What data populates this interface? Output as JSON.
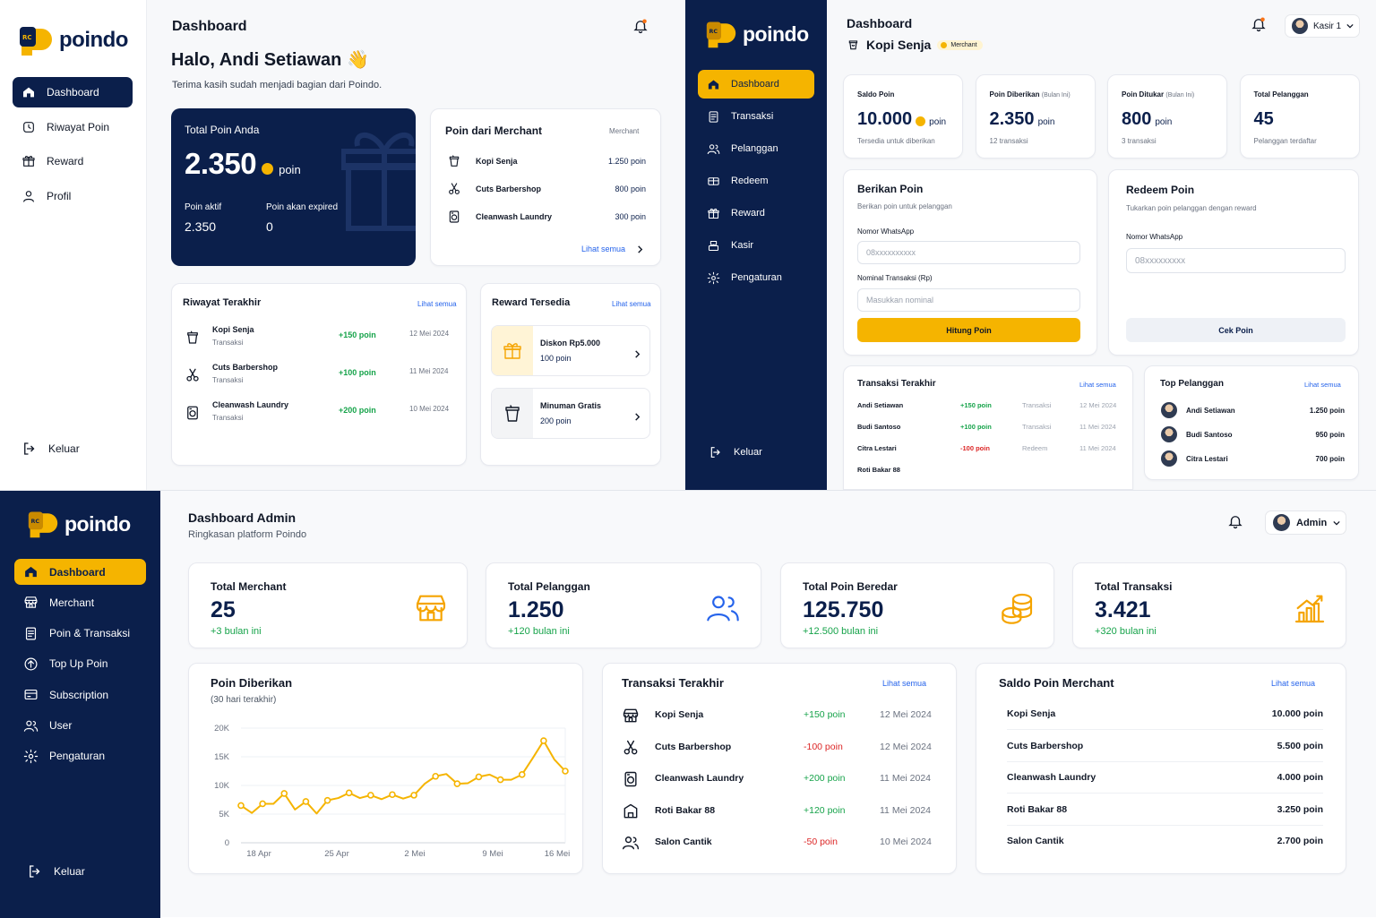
{
  "brand": {
    "name": "poindo",
    "mark": "RC",
    "colors": {
      "navy": "#0b1f4b",
      "orange": "#f5b400",
      "green": "#16a34a",
      "red": "#dc2626",
      "blue": "#2563eb"
    }
  },
  "customer": {
    "nav": [
      {
        "label": "Dashboard",
        "icon": "home-icon",
        "active": true
      },
      {
        "label": "Riwayat Poin",
        "icon": "history-icon"
      },
      {
        "label": "Reward",
        "icon": "gift-icon"
      },
      {
        "label": "Profil",
        "icon": "user-icon"
      }
    ],
    "logout": "Keluar",
    "page_title": "Dashboard",
    "greeting": "Halo, Andi Setiawan 👋",
    "subtitle": "Terima kasih sudah menjadi bagian dari Poindo.",
    "total": {
      "label": "Total Poin Anda",
      "value": "2.350",
      "unit": "poin",
      "active_label": "Poin aktif",
      "active_value": "2.350",
      "expire_label": "Poin akan expired",
      "expire_value": "0"
    },
    "merchant_card": {
      "title": "Poin dari Merchant",
      "tag": "Merchant",
      "items": [
        {
          "name": "Kopi Senja",
          "points": "1.250 poin",
          "icon": "cup-icon"
        },
        {
          "name": "Cuts Barbershop",
          "points": "800 poin",
          "icon": "scissors-icon"
        },
        {
          "name": "Cleanwash Laundry",
          "points": "300 poin",
          "icon": "washer-icon"
        }
      ],
      "link": "Lihat semua"
    },
    "history": {
      "title": "Riwayat Terakhir",
      "link": "Lihat semua",
      "items": [
        {
          "name": "Kopi Senja",
          "type": "Transaksi",
          "points": "+150 poin",
          "date": "12 Mei 2024",
          "icon": "cup-icon"
        },
        {
          "name": "Cuts Barbershop",
          "type": "Transaksi",
          "points": "+100 poin",
          "date": "11 Mei 2024",
          "icon": "scissors-icon"
        },
        {
          "name": "Cleanwash Laundry",
          "type": "Transaksi",
          "points": "+200 poin",
          "date": "10 Mei 2024",
          "icon": "washer-icon"
        }
      ]
    },
    "rewards": {
      "title": "Reward Tersedia",
      "link": "Lihat semua",
      "items": [
        {
          "name": "Diskon Rp5.000",
          "cost": "100 poin",
          "icon": "gift-icon"
        },
        {
          "name": "Minuman Gratis",
          "cost": "200 poin",
          "icon": "cup-icon"
        }
      ]
    }
  },
  "merchant": {
    "nav": [
      {
        "label": "Dashboard",
        "icon": "home-icon",
        "active": true
      },
      {
        "label": "Transaksi",
        "icon": "receipt-icon"
      },
      {
        "label": "Pelanggan",
        "icon": "users-icon"
      },
      {
        "label": "Redeem",
        "icon": "ticket-icon"
      },
      {
        "label": "Reward",
        "icon": "gift-icon"
      },
      {
        "label": "Kasir",
        "icon": "register-icon"
      },
      {
        "label": "Pengaturan",
        "icon": "gear-icon"
      }
    ],
    "logout": "Keluar",
    "page_title": "Dashboard",
    "store_name": "Kopi Senja",
    "store_badge": "Merchant",
    "user": "Kasir 1",
    "stats": [
      {
        "label": "Saldo Poin",
        "suffix": "",
        "value": "10.000",
        "unit": "poin",
        "sub": "Tersedia untuk diberikan",
        "coin": true
      },
      {
        "label": "Poin Diberikan",
        "suffix": "(Bulan Ini)",
        "value": "2.350",
        "unit": "poin",
        "sub": "12 transaksi"
      },
      {
        "label": "Poin Ditukar",
        "suffix": "(Bulan Ini)",
        "value": "800",
        "unit": "poin",
        "sub": "3 transaksi"
      },
      {
        "label": "Total Pelanggan",
        "suffix": "",
        "value": "45",
        "unit": "",
        "sub": "Pelanggan terdaftar"
      }
    ],
    "give": {
      "title": "Berikan Poin",
      "desc": "Berikan poin untuk pelanggan",
      "wa_label": "Nomor WhatsApp",
      "wa_placeholder": "08xxxxxxxxxx",
      "amount_label": "Nominal Transaksi (Rp)",
      "amount_placeholder": "Masukkan nominal",
      "button": "Hitung Poin"
    },
    "redeem": {
      "title": "Redeem Poin",
      "desc": "Tukarkan poin pelanggan dengan reward",
      "wa_label": "Nomor WhatsApp",
      "wa_placeholder": "08xxxxxxxxx",
      "button": "Cek Poin"
    },
    "recent": {
      "title": "Transaksi Terakhir",
      "link": "Lihat semua",
      "rows": [
        {
          "name": "Andi Setiawan",
          "points": "+150 poin",
          "type": "Transaksi",
          "date": "12 Mei 2024",
          "positive": true
        },
        {
          "name": "Budi Santoso",
          "points": "+100 poin",
          "type": "Transaksi",
          "date": "11 Mei 2024",
          "positive": true
        },
        {
          "name": "Citra Lestari",
          "points": "-100 poin",
          "type": "Redeem",
          "date": "11 Mei 2024",
          "positive": false
        },
        {
          "name": "Roti Bakar 88",
          "points": "",
          "type": "",
          "date": "",
          "positive": true
        }
      ]
    },
    "top": {
      "title": "Top Pelanggan",
      "link": "Lihat semua",
      "rows": [
        {
          "name": "Andi Setiawan",
          "points": "1.250 poin"
        },
        {
          "name": "Budi Santoso",
          "points": "950 poin"
        },
        {
          "name": "Citra Lestari",
          "points": "700 poin"
        }
      ]
    }
  },
  "admin": {
    "nav": [
      {
        "label": "Dashboard",
        "icon": "home-icon",
        "active": true
      },
      {
        "label": "Merchant",
        "icon": "store-icon"
      },
      {
        "label": "Poin & Transaksi",
        "icon": "receipt-icon"
      },
      {
        "label": "Top Up Poin",
        "icon": "topup-icon"
      },
      {
        "label": "Subscription",
        "icon": "card-icon"
      },
      {
        "label": "User",
        "icon": "users-icon"
      },
      {
        "label": "Pengaturan",
        "icon": "gear-icon"
      }
    ],
    "logout": "Keluar",
    "title": "Dashboard Admin",
    "subtitle": "Ringkasan platform Poindo",
    "user": "Admin",
    "stats": [
      {
        "label": "Total Merchant",
        "value": "25",
        "delta": "+3 bulan ini",
        "icon": "store-icon"
      },
      {
        "label": "Total Pelanggan",
        "value": "1.250",
        "delta": "+120 bulan ini",
        "icon": "users-icon"
      },
      {
        "label": "Total Poin Beredar",
        "value": "125.750",
        "delta": "+12.500 bulan ini",
        "icon": "coins-icon"
      },
      {
        "label": "Total Transaksi",
        "value": "3.421",
        "delta": "+320 bulan ini",
        "icon": "bar-chart-icon"
      }
    ],
    "recent": {
      "title": "Transaksi Terakhir",
      "link": "Lihat semua",
      "rows": [
        {
          "name": "Kopi Senja",
          "points": "+150 poin",
          "date": "12 Mei 2024",
          "positive": true,
          "icon": "store-icon"
        },
        {
          "name": "Cuts Barbershop",
          "points": "-100 poin",
          "date": "12 Mei 2024",
          "positive": false,
          "icon": "scissors-icon"
        },
        {
          "name": "Cleanwash Laundry",
          "points": "+200 poin",
          "date": "11 Mei 2024",
          "positive": true,
          "icon": "washer-icon"
        },
        {
          "name": "Roti Bakar 88",
          "points": "+120 poin",
          "date": "11 Mei 2024",
          "positive": true,
          "icon": "shop-icon"
        },
        {
          "name": "Salon Cantik",
          "points": "-50 poin",
          "date": "10 Mei 2024",
          "positive": false,
          "icon": "users-icon"
        }
      ]
    },
    "balances": {
      "title": "Saldo Poin Merchant",
      "link": "Lihat semua",
      "rows": [
        {
          "name": "Kopi Senja",
          "points": "10.000 poin"
        },
        {
          "name": "Cuts Barbershop",
          "points": "5.500 poin"
        },
        {
          "name": "Cleanwash Laundry",
          "points": "4.000 poin"
        },
        {
          "name": "Roti Bakar 88",
          "points": "3.250 poin"
        },
        {
          "name": "Salon Cantik",
          "points": "2.700 poin"
        }
      ]
    }
  },
  "chart_data": {
    "type": "line",
    "title": "Poin Diberikan",
    "subtitle": "(30 hari terakhir)",
    "xlabel": "",
    "ylabel": "",
    "ylim": [
      0,
      20000
    ],
    "yticks": [
      "20K",
      "15K",
      "10K",
      "5K",
      "0"
    ],
    "xticks": [
      "18 Apr",
      "25 Apr",
      "2 Mei",
      "9 Mei",
      "16 Mei"
    ],
    "grid": true,
    "color": "#f5b400",
    "x": [
      0,
      1,
      2,
      3,
      4,
      5,
      6,
      7,
      8,
      9,
      10,
      11,
      12,
      13,
      14,
      15,
      16,
      17,
      18,
      19,
      20,
      21,
      22,
      23,
      24,
      25,
      26,
      27,
      28,
      29,
      30
    ],
    "values": [
      6500,
      5200,
      6800,
      6800,
      8600,
      5800,
      7200,
      5100,
      7400,
      7800,
      8700,
      7800,
      8300,
      7600,
      8400,
      7700,
      8300,
      10300,
      11600,
      12000,
      10300,
      10400,
      11500,
      11900,
      11000,
      11000,
      11900,
      14800,
      17800,
      14500,
      12500
    ]
  }
}
